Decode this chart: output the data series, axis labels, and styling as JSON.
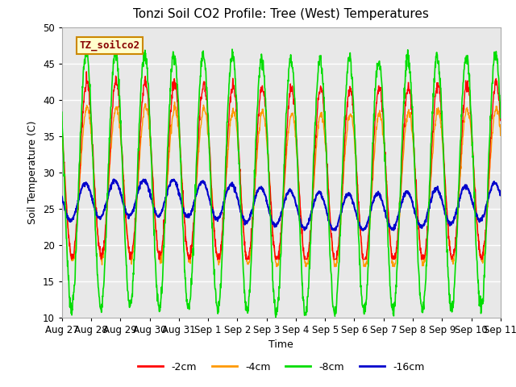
{
  "title": "Tonzi Soil CO2 Profile: Tree (West) Temperatures",
  "xlabel": "Time",
  "ylabel": "Soil Temperature (C)",
  "ylim": [
    10,
    50
  ],
  "legend_label": "TZ_soilco2",
  "series_labels": [
    "-2cm",
    "-4cm",
    "-8cm",
    "-16cm"
  ],
  "series_colors": [
    "#ff0000",
    "#ff9900",
    "#00dd00",
    "#0000cc"
  ],
  "background_color": "#e8e8e8",
  "tick_labels": [
    "Aug 27",
    "Aug 28",
    "Aug 29",
    "Aug 30",
    "Aug 31",
    "Sep 1",
    "Sep 2",
    "Sep 3",
    "Sep 4",
    "Sep 5",
    "Sep 6",
    "Sep 7",
    "Sep 8",
    "Sep 9",
    "Sep 10",
    "Sep 11"
  ],
  "yticks": [
    10,
    15,
    20,
    25,
    30,
    35,
    40,
    45,
    50
  ],
  "n_days": 15,
  "ppd": 100
}
